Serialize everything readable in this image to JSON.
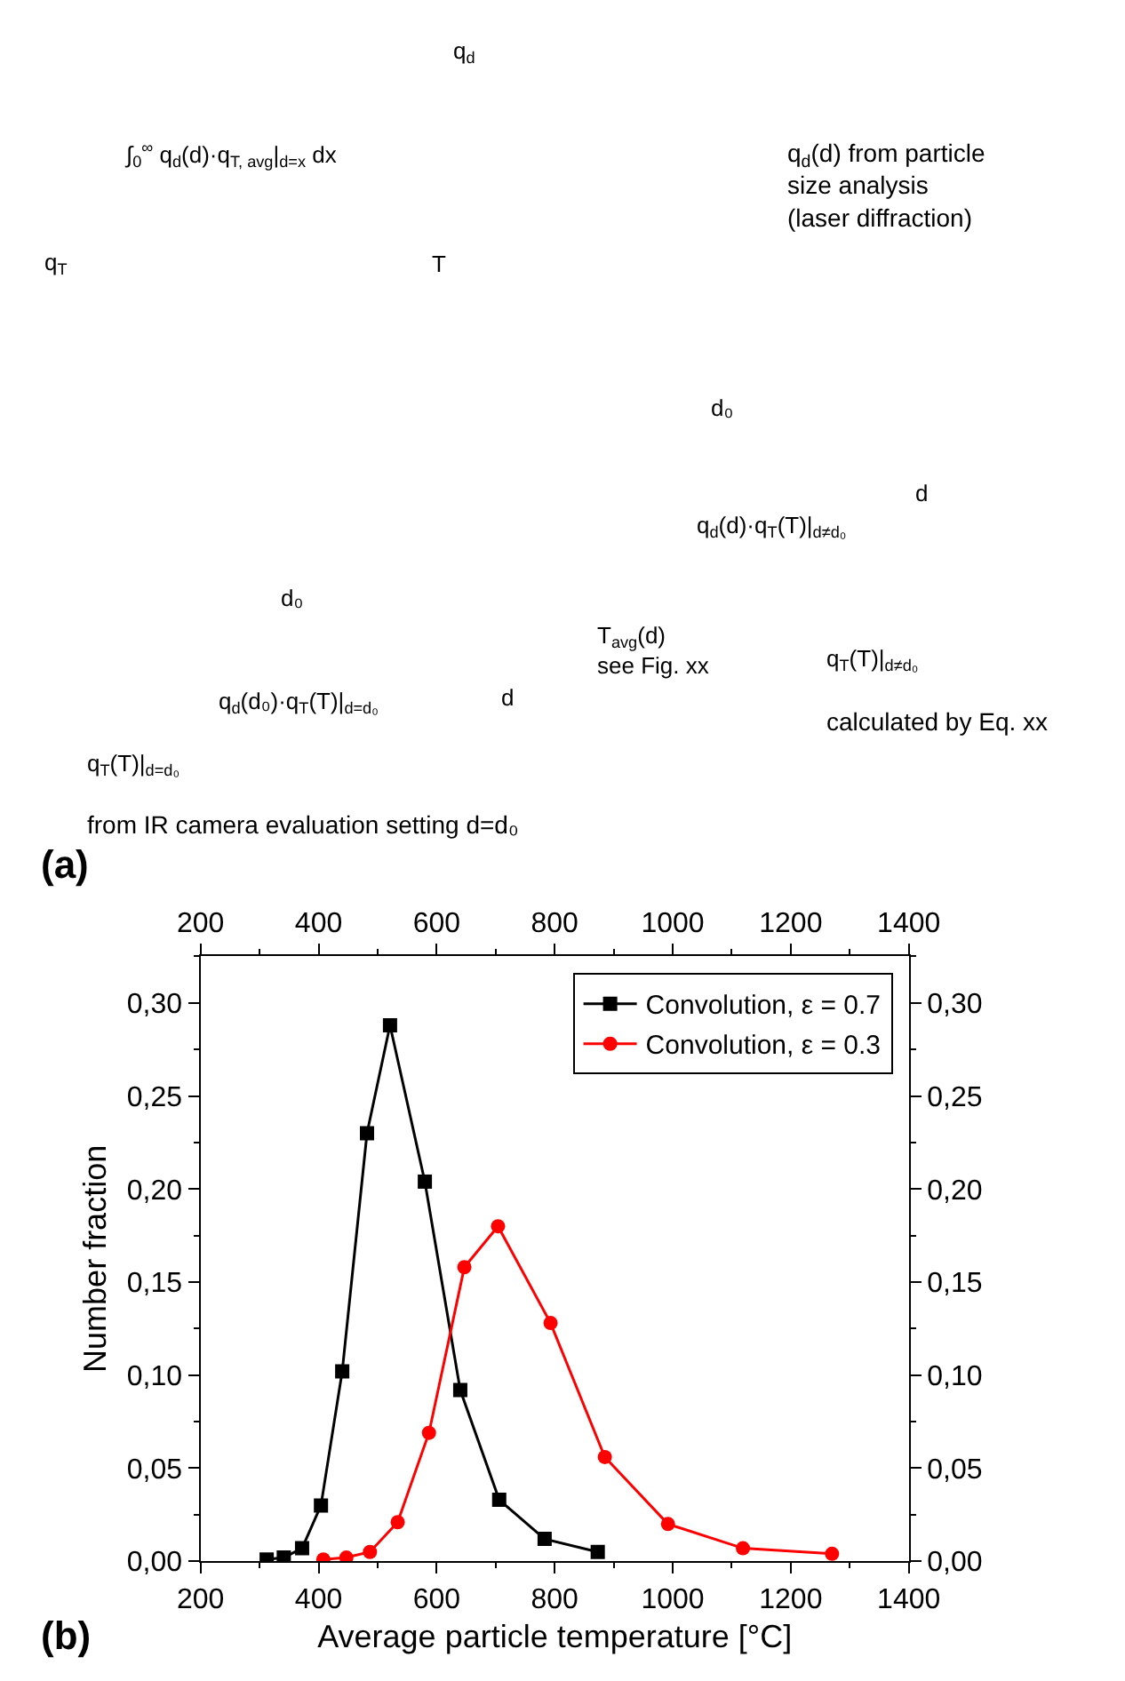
{
  "chart_data": [
    {
      "type": "other",
      "annotations": [
        "∫$_{0}$$^{∞}$ q$_{d}$(d)·q$_{T, avg}$|$_{d=x}$ dx",
        "q$_{T}$",
        "T",
        "q$_{d}$",
        "q$_{d}$(d) from particle\nsize analysis\n(laser diffraction)",
        "d₀",
        "d",
        "d₀",
        "d",
        "q$_{d}$(d)·q$_{T}$(T)|$_{d≠d₀}$",
        "T$_{avg}$(d)\nsee Fig. xx",
        "q$_{T}$(T)|$_{d≠d₀}$",
        "calculated by Eq. xx",
        "q$_{d}$(d₀)·q$_{T}$(T)|$_{d=d₀}$",
        "q$_{T}$(T)|$_{d=d₀}$",
        "from IR camera evaluation setting d=d₀",
        "(a)"
      ]
    },
    {
      "type": "line",
      "xlabel": "Average particle temperature [°C]",
      "ylabel": "Number fraction",
      "annotations": [
        "(b)"
      ],
      "xlim": [
        200,
        1400
      ],
      "xticks": [
        200,
        400,
        600,
        800,
        1000,
        1200,
        1400
      ],
      "x2lim": [
        200,
        1400
      ],
      "x2ticks": [
        200,
        400,
        600,
        800,
        1000,
        1200,
        1400
      ],
      "ylim": [
        0,
        0.325
      ],
      "yticks": [
        {
          "value": 0,
          "label": "0,00"
        },
        {
          "value": 0.05,
          "label": "0,05"
        },
        {
          "value": 0.1,
          "label": "0,10"
        },
        {
          "value": 0.15,
          "label": "0,15"
        },
        {
          "value": 0.2,
          "label": "0,20"
        },
        {
          "value": 0.25,
          "label": "0,25"
        },
        {
          "value": 0.3,
          "label": "0,30"
        }
      ],
      "y2lim": [
        0,
        0.325
      ],
      "y2ticks": [
        {
          "value": 0,
          "label": "0,00"
        },
        {
          "value": 0.05,
          "label": "0,05"
        },
        {
          "value": 0.1,
          "label": "0,10"
        },
        {
          "value": 0.15,
          "label": "0,15"
        },
        {
          "value": 0.2,
          "label": "0,20"
        },
        {
          "value": 0.25,
          "label": "0,25"
        },
        {
          "value": 0.3,
          "label": "0,30"
        }
      ],
      "legend": "top right",
      "line_style": "solid",
      "series": [
        {
          "name": "Convolution, ε = 0.7",
          "color": "#000000",
          "marker": "square",
          "x": [
            312,
            341,
            372,
            404,
            440,
            482,
            521,
            580,
            640,
            706,
            783,
            873
          ],
          "values": [
            0.001,
            0.002,
            0.007,
            0.03,
            0.102,
            0.23,
            0.288,
            0.204,
            0.092,
            0.033,
            0.012,
            0.005
          ]
        },
        {
          "name": "Convolution, ε = 0.3",
          "color": "#ff0000",
          "marker": "circle",
          "x": [
            408,
            447,
            487,
            534,
            587,
            647,
            704,
            793,
            885,
            992,
            1119,
            1270
          ],
          "values": [
            0.001,
            0.002,
            0.005,
            0.021,
            0.069,
            0.158,
            0.18,
            0.128,
            0.056,
            0.02,
            0.007,
            0.004
          ]
        }
      ]
    }
  ]
}
